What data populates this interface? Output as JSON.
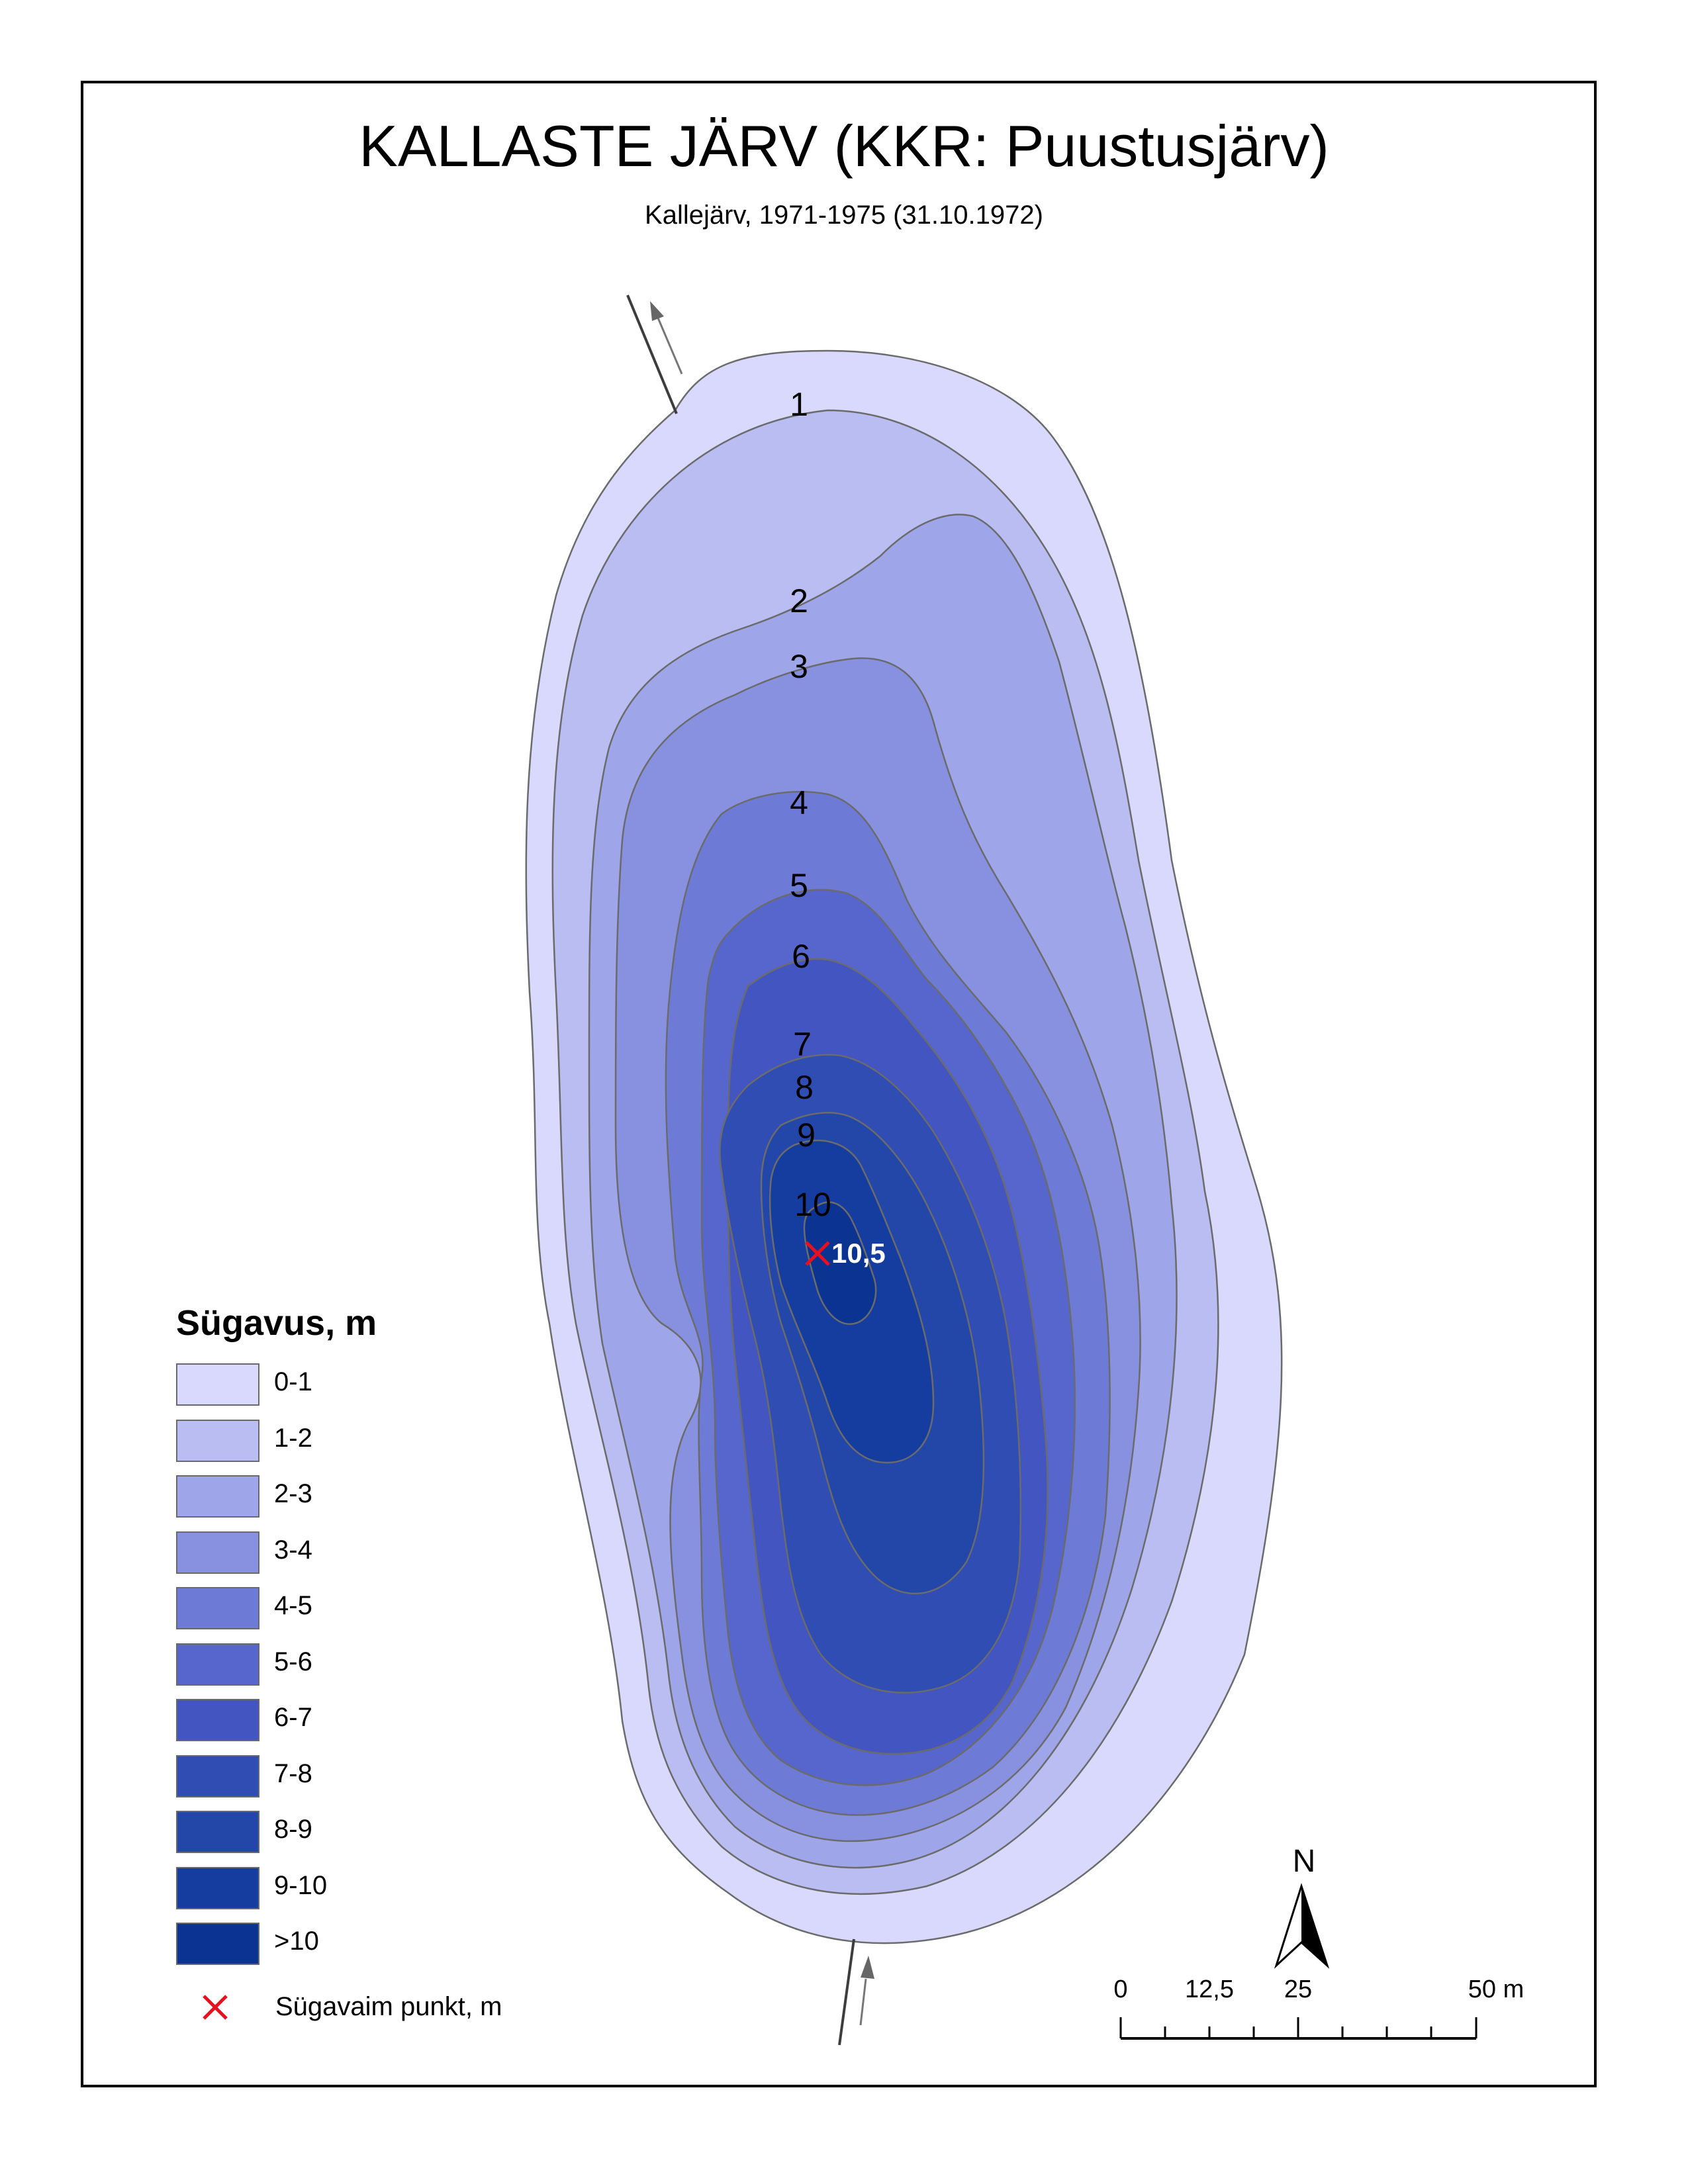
{
  "title": "KALLASTE JÄRV (KKR: Puustusjärv)",
  "subtitle": "Kallejärv, 1971-1975 (31.10.1972)",
  "depth_labels": [
    "1",
    "2",
    "3",
    "4",
    "5",
    "6",
    "7",
    "8",
    "9",
    "10"
  ],
  "deepest_point": {
    "value": "10,5",
    "color": "#e8101e"
  },
  "legend": {
    "title": "Sügavus, m",
    "items": [
      {
        "label": "0-1",
        "color": "#d8d9fc"
      },
      {
        "label": "1-2",
        "color": "#b9bdf2"
      },
      {
        "label": "2-3",
        "color": "#9ea6e9"
      },
      {
        "label": "3-4",
        "color": "#8791e0"
      },
      {
        "label": "4-5",
        "color": "#6e7bd6"
      },
      {
        "label": "5-6",
        "color": "#5666cc"
      },
      {
        "label": "6-7",
        "color": "#4255c0"
      },
      {
        "label": "7-8",
        "color": "#2f4db3"
      },
      {
        "label": "8-9",
        "color": "#2346a9"
      },
      {
        "label": "9-10",
        "color": "#153d9f"
      },
      {
        "label": ">10",
        "color": "#0a3392"
      }
    ],
    "deepest_label": "Sügavaim punkt, m"
  },
  "north": {
    "label": "N"
  },
  "scale_bar": {
    "labels": [
      "0",
      "12,5",
      "25",
      "50 m"
    ]
  }
}
